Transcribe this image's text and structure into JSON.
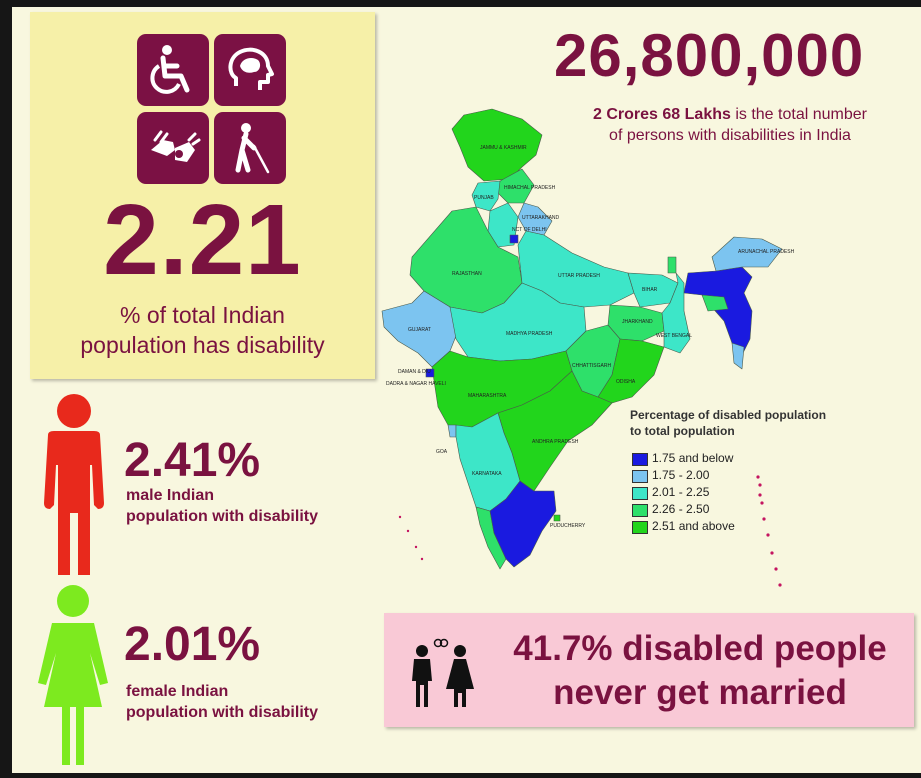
{
  "total": {
    "number": "26,800,000",
    "desc_bold": "2 Crores 68 Lakhs",
    "desc_rest_line1": " is the total number",
    "desc_line2": "of persons with disabilities in India"
  },
  "overall": {
    "value": "2.21",
    "label_line1": "% of total Indian",
    "label_line2": "population has disability",
    "icons": [
      "wheelchair-icon",
      "brain-icon",
      "sign-language-icon",
      "blind-cane-icon"
    ]
  },
  "male": {
    "value": "2.41%",
    "label_line1": "male Indian",
    "label_line2": "population with disability",
    "icon": "male-figure-icon",
    "color": "#e8291c"
  },
  "female": {
    "value": "2.01%",
    "label_line1": "female Indian",
    "label_line2": "population with disability",
    "icon": "female-figure-icon",
    "color": "#7dea1f"
  },
  "married": {
    "line1": "41.7% disabled people",
    "line2": "never get married",
    "icon": "couple-icon"
  },
  "map": {
    "legend_title_line1": "Percentage of disabled population",
    "legend_title_line2": "to total population",
    "legend": [
      {
        "label": "1.75 and below",
        "color": "#1a1ae0"
      },
      {
        "label": "1.75 - 2.00",
        "color": "#7cc4f0"
      },
      {
        "label": "2.01 - 2.25",
        "color": "#3de6c8"
      },
      {
        "label": "2.26 - 2.50",
        "color": "#2ee06a"
      },
      {
        "label": "2.51 and above",
        "color": "#22d51c"
      }
    ],
    "state_labels": {
      "jk": "JAMMU & KASHMIR",
      "hp": "HIMACHAL PRADESH",
      "punjab": "PUNJAB",
      "uttarakhand": "UTTARAKHAND",
      "delhi": "NCT OF DELHI",
      "rajasthan": "RAJASTHAN",
      "up": "UTTAR PRADESH",
      "bihar": "BIHAR",
      "arunachal": "ARUNACHAL PRADESH",
      "gujarat": "GUJARAT",
      "mp": "MADHYA PRADESH",
      "jharkhand": "JHARKHAND",
      "wb": "WEST BENGAL",
      "chhattisgarh": "CHHATTISGARH",
      "odisha": "ODISHA",
      "maharashtra": "MAHARASHTRA",
      "andhra": "ANDHRA PRADESH",
      "karnataka": "KARNATAKA",
      "goa": "GOA",
      "puducherry": "PUDUCHERRY",
      "daman": "DAMAN & DIU",
      "dnh": "DADRA & NAGAR HAVELI"
    }
  },
  "colors": {
    "maroon": "#7a1240",
    "background": "#f8f7df",
    "stat_box": "#f6f0a8",
    "pink_box": "#f9c9d6"
  }
}
